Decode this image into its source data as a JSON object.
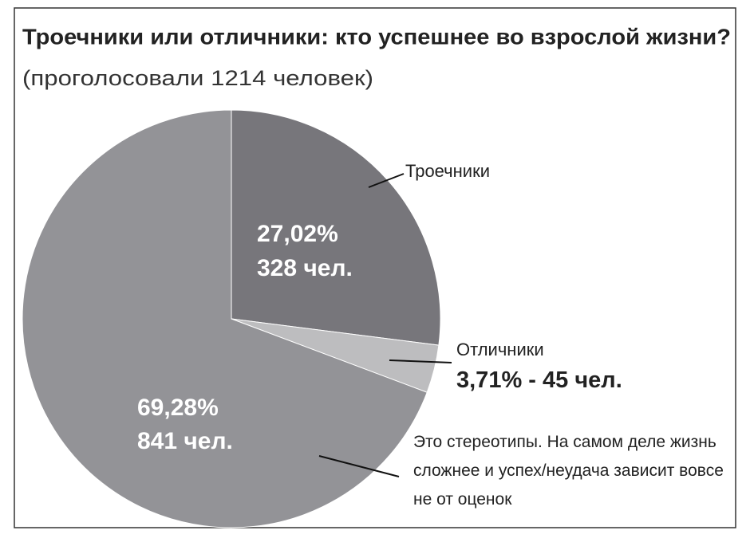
{
  "chart_data": {
    "type": "pie",
    "title": "Троечники или отличники: кто успешнее во взрослой жизни?",
    "subtitle": "(проголосовали 1214 человек)",
    "categories": [
      "Троечники",
      "Отличники",
      "Это стереотипы. На самом деле жизнь сложнее и успех/неудача зависит вовсе не от оценок"
    ],
    "values": [
      27.02,
      3.71,
      69.28
    ],
    "value_labels": [
      "27,02%",
      "3,71%",
      "69,28%"
    ],
    "counts": [
      328,
      45,
      841
    ],
    "count_labels": [
      "328 чел.",
      "45 чел.",
      "841 чел."
    ],
    "label_separator": " - ",
    "colors": [
      "#77767b",
      "#bdbdbf",
      "#939397"
    ]
  }
}
